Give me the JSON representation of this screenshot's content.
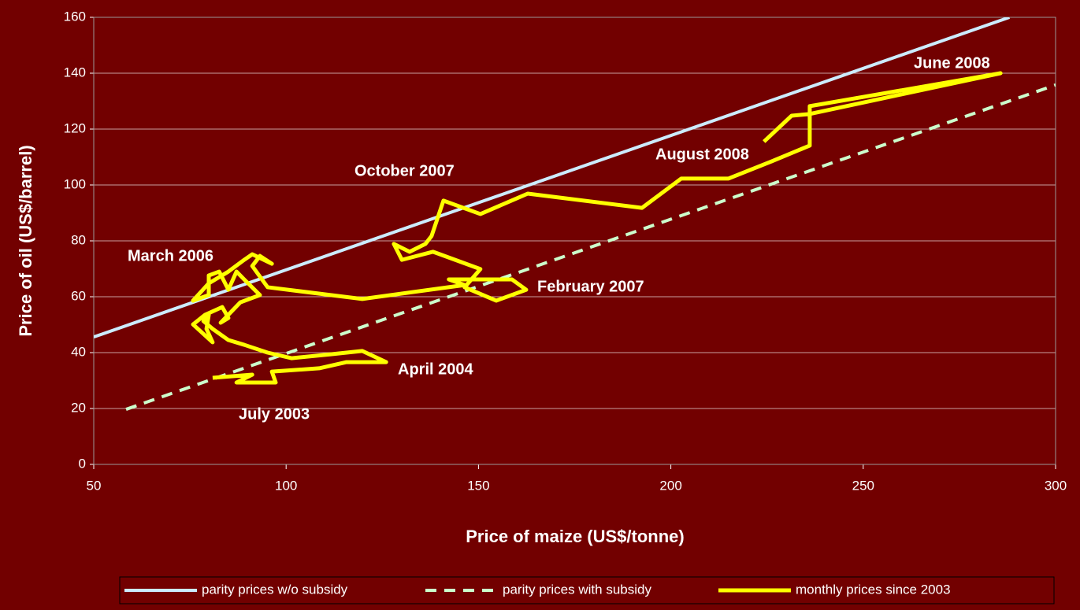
{
  "chart_data": {
    "type": "line",
    "xlabel": "Price of maize (US$/tonne)",
    "ylabel": "Price of oil (US$/barrel)",
    "xlim": [
      50,
      300
    ],
    "xticks": [
      50,
      100,
      150,
      200,
      250,
      300
    ],
    "ylim": [
      0,
      160
    ],
    "yticks": [
      0,
      20,
      40,
      60,
      80,
      100,
      120,
      140,
      160
    ],
    "grid": true,
    "legend": "bottom",
    "series": [
      {
        "name": "parity prices w/o subsidy",
        "color": "#ccecff",
        "style": "solid",
        "x": [
          50,
          288
        ],
        "values": [
          45.6,
          160
        ]
      },
      {
        "name": "parity prices with subsidy",
        "color": "#ccffcc",
        "style": "dashed",
        "x": [
          58.4,
          300
        ],
        "values": [
          19.7,
          135.8
        ]
      },
      {
        "name": "monthly prices since 2003",
        "color": "#ffff00",
        "style": "solid",
        "x": [
          80.9,
          91.2,
          87.1,
          97.3,
          96.3,
          108.6,
          115.7,
          126.0,
          119.8,
          111.6,
          101.4,
          95.2,
          89.1,
          85.0,
          80.9,
          78.5,
          79.9,
          79.3,
          80.9,
          75.8,
          78.9,
          83.4,
          85.0,
          83.0,
          88.1,
          93.2,
          89.1,
          87.1,
          85.0,
          82.6,
          79.9,
          79.9,
          75.8,
          79.9,
          85.0,
          89.1,
          91.2,
          96.3,
          93.2,
          91.2,
          95.2,
          119.8,
          146.4,
          142.3,
          158.7,
          162.4,
          154.6,
          146.4,
          150.5,
          138.2,
          130.1,
          128.0,
          132.1,
          136.2,
          137.8,
          140.9,
          150.5,
          162.8,
          192.5,
          202.7,
          215.0,
          226.3,
          236.1,
          236.1,
          285.7,
          236.1,
          231.4,
          224.2
        ],
        "values": [
          31.0,
          32.1,
          29.3,
          29.3,
          33.2,
          34.4,
          36.6,
          36.6,
          40.6,
          39.4,
          38.0,
          40.0,
          42.8,
          44.5,
          48.5,
          51.3,
          53.5,
          48.5,
          43.7,
          50.1,
          53.5,
          56.3,
          52.4,
          50.7,
          58.0,
          60.6,
          66.2,
          69.0,
          62.5,
          69.0,
          67.6,
          60.6,
          58.6,
          64.8,
          69.0,
          73.2,
          75.2,
          71.8,
          74.6,
          71.0,
          63.4,
          59.2,
          64.2,
          66.2,
          66.2,
          62.5,
          58.6,
          63.4,
          69.9,
          76.1,
          73.2,
          78.9,
          76.1,
          78.9,
          81.7,
          94.4,
          89.6,
          96.9,
          91.8,
          102.3,
          102.3,
          108.5,
          114.1,
          128.2,
          140.0,
          125.4,
          124.8,
          115.5
        ]
      }
    ],
    "annotations": [
      "June 2008",
      "August 2008",
      "October 2007",
      "March 2006",
      "February 2007",
      "April 2004",
      "July 2003"
    ]
  }
}
